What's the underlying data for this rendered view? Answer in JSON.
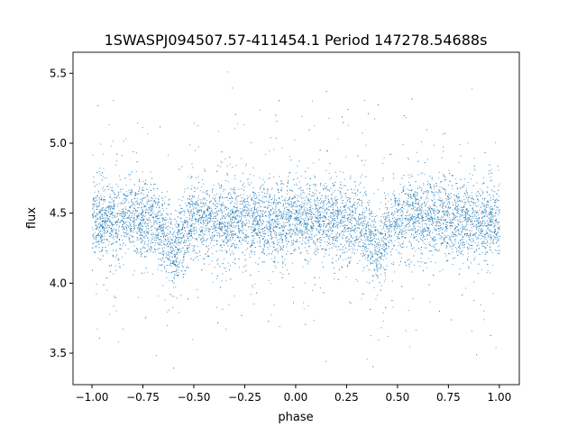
{
  "chart_data": {
    "type": "scatter",
    "title": "1SWASPJ094507.57-411454.1 Period 147278.54688s",
    "xlabel": "phase",
    "ylabel": "flux",
    "xlim": [
      -1.093,
      1.098
    ],
    "ylim": [
      3.275,
      5.65
    ],
    "xticks": [
      "−1.00",
      "−0.75",
      "−0.50",
      "−0.25",
      "0.00",
      "0.25",
      "0.50",
      "0.75",
      "1.00"
    ],
    "xtick_values": [
      -1.0,
      -0.75,
      -0.5,
      -0.25,
      0.0,
      0.25,
      0.5,
      0.75,
      1.0
    ],
    "yticks": [
      "3.5",
      "4.0",
      "4.5",
      "5.0",
      "5.5"
    ],
    "ytick_values": [
      3.5,
      4.0,
      4.5,
      5.0,
      5.5
    ],
    "grid": false,
    "marker_color": "#1f77b4",
    "data_range": {
      "phase": [
        -1.0,
        1.0
      ],
      "flux": [
        3.38,
        5.55
      ]
    },
    "median_flux_by_phase": {
      "phase": [
        -1.0,
        -0.8,
        -0.7,
        -0.62,
        -0.6,
        -0.58,
        -0.5,
        -0.3,
        -0.1,
        0.1,
        0.3,
        0.38,
        0.4,
        0.42,
        0.5,
        0.7,
        0.9,
        1.0
      ],
      "flux": [
        4.45,
        4.47,
        4.46,
        4.3,
        4.18,
        4.3,
        4.45,
        4.45,
        4.44,
        4.45,
        4.46,
        4.3,
        4.18,
        4.3,
        4.45,
        4.46,
        4.45,
        4.45
      ]
    },
    "flux_scatter_sd": 0.13
  }
}
